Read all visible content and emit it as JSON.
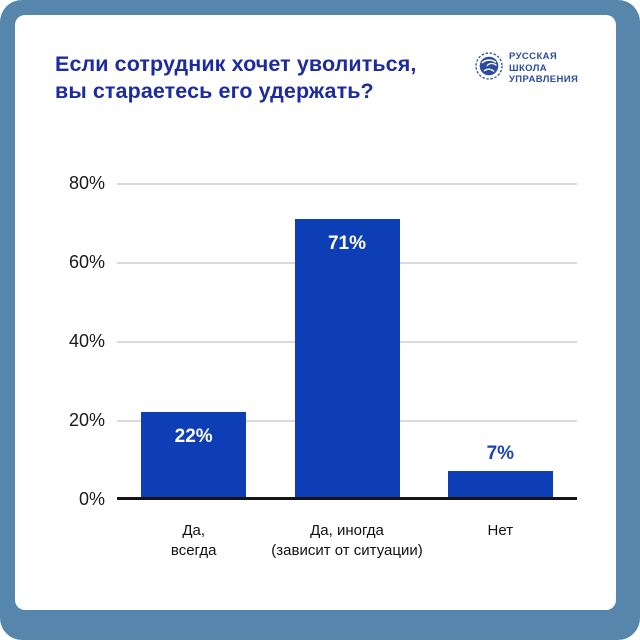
{
  "frame": {
    "border_color": "#5786ad",
    "card_bg": "#ffffff"
  },
  "header": {
    "title": "Если сотрудник хочет уволиться,\nвы стараетесь его удержать?",
    "title_color": "#1c2b9d"
  },
  "logo": {
    "icon": "globe-icon",
    "lines": [
      "РУССКАЯ",
      "ШКОЛА",
      "УПРАВЛЕНИЯ"
    ],
    "color": "#2b4c9f"
  },
  "chart_data": {
    "type": "bar",
    "title": "Если сотрудник хочет уволиться, вы стараетесь его удержать?",
    "categories": [
      "Да,\nвсегда",
      "Да, иногда\n(зависит от ситуации)",
      "Нет"
    ],
    "values": [
      22,
      71,
      7
    ],
    "value_labels": [
      "22%",
      "71%",
      "7%"
    ],
    "yticks": [
      0,
      20,
      40,
      60,
      80
    ],
    "ytick_labels": [
      "0%",
      "20%",
      "40%",
      "60%",
      "80%"
    ],
    "ylim": [
      0,
      80
    ],
    "grid": true,
    "legend": false,
    "bar_color": "#0d3eb5",
    "value_label_color_inside": "#ffffff",
    "value_label_color_outside": "#1d43b4",
    "axis_color": "#141414",
    "grid_color": "#dadada"
  }
}
